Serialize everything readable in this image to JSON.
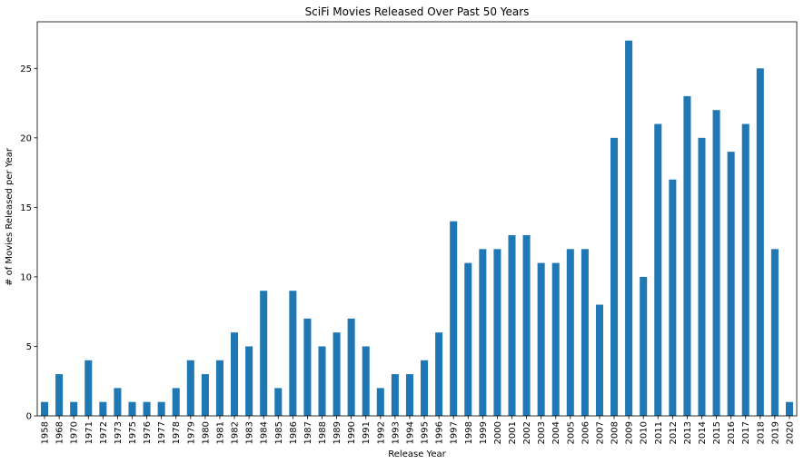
{
  "chart_data": {
    "type": "bar",
    "title": "SciFi Movies Released Over Past 50 Years",
    "xlabel": "Release Year",
    "ylabel": "# of Movies Released per Year",
    "ylim": [
      0,
      28.35
    ],
    "yticks": [
      0,
      5,
      10,
      15,
      20,
      25
    ],
    "grid": false,
    "color": "#1f77b4",
    "categories": [
      "1958",
      "1968",
      "1970",
      "1971",
      "1972",
      "1973",
      "1975",
      "1976",
      "1977",
      "1978",
      "1979",
      "1980",
      "1981",
      "1982",
      "1983",
      "1984",
      "1985",
      "1986",
      "1987",
      "1988",
      "1989",
      "1990",
      "1991",
      "1992",
      "1993",
      "1994",
      "1995",
      "1996",
      "1997",
      "1998",
      "1999",
      "2000",
      "2001",
      "2002",
      "2003",
      "2004",
      "2005",
      "2006",
      "2007",
      "2008",
      "2009",
      "2010",
      "2011",
      "2012",
      "2013",
      "2014",
      "2015",
      "2016",
      "2017",
      "2018",
      "2019",
      "2020"
    ],
    "values": [
      1,
      3,
      1,
      4,
      1,
      2,
      1,
      1,
      1,
      2,
      4,
      3,
      4,
      6,
      5,
      9,
      2,
      9,
      7,
      5,
      6,
      7,
      5,
      2,
      3,
      3,
      4,
      6,
      14,
      11,
      12,
      12,
      13,
      13,
      11,
      11,
      12,
      12,
      8,
      20,
      27,
      10,
      21,
      17,
      23,
      20,
      22,
      19,
      21,
      25,
      12,
      1
    ]
  }
}
